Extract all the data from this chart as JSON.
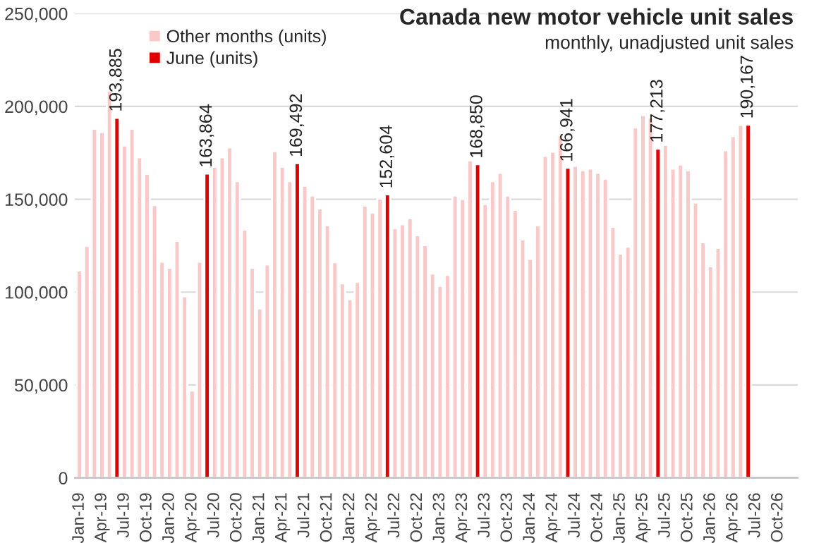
{
  "chart_data": {
    "type": "bar",
    "title": "Canada new motor vehicle unit sales",
    "subtitle": "monthly, unadjusted unit sales",
    "categories": [
      "Jan-19",
      null,
      null,
      "Apr-19",
      null,
      null,
      "Jul-19",
      null,
      null,
      "Oct-19",
      null,
      null,
      "Jan-20",
      null,
      null,
      "Apr-20",
      null,
      null,
      "Jul-20",
      null,
      null,
      "Oct-20",
      null,
      null,
      "Jan-21",
      null,
      null,
      "Apr-21",
      null,
      null,
      "Jul-21",
      null,
      null,
      "Oct-21",
      null,
      null,
      "Jan-22",
      null,
      null,
      "Apr-22",
      null,
      null,
      "Jul-22",
      null,
      null,
      "Oct-22",
      null,
      null,
      "Jan-23",
      null,
      null,
      "Apr-23",
      null,
      null,
      "Jul-23",
      null,
      null,
      "Oct-23",
      null,
      null,
      "Jan-24",
      null,
      null,
      "Apr-24",
      null,
      null,
      "Jul-24",
      null,
      null,
      "Oct-24",
      null,
      null,
      "Jan-25",
      null,
      null,
      "Apr-25",
      null,
      null,
      "Jul-25",
      null,
      null,
      "Oct-25",
      null,
      null,
      "Jan-26",
      null,
      null,
      "Apr-26",
      null,
      null,
      "Jul-26",
      null,
      null,
      "Oct-26",
      null,
      null
    ],
    "series": [
      {
        "name": "Other months (units)",
        "color": "#f9c9c9",
        "values": [
          111600,
          124800,
          188000,
          186300,
          208400,
          null,
          178900,
          188000,
          172600,
          163700,
          146900,
          116400,
          113100,
          127600,
          97800,
          47000,
          116400,
          null,
          167500,
          172600,
          177900,
          159800,
          133700,
          113100,
          91200,
          114900,
          175900,
          167500,
          159800,
          null,
          157300,
          152000,
          145100,
          136000,
          116100,
          104700,
          96300,
          105500,
          146600,
          142800,
          150400,
          null,
          134400,
          136500,
          139800,
          130600,
          125300,
          110000,
          103400,
          109300,
          152000,
          150200,
          171000,
          null,
          147400,
          159800,
          164200,
          152000,
          144300,
          128300,
          117900,
          136000,
          173300,
          175600,
          184500,
          null,
          168000,
          165700,
          166500,
          164200,
          161100,
          135200,
          120700,
          124500,
          188600,
          195400,
          193900,
          null,
          179200,
          166500,
          168700,
          165700,
          148200,
          126800,
          113900,
          123800,
          176400,
          184000,
          190100,
          null,
          null,
          null,
          null,
          null,
          null,
          null
        ]
      },
      {
        "name": "June (units)",
        "color": "#e00000",
        "values": [
          null,
          null,
          null,
          null,
          null,
          193885,
          null,
          null,
          null,
          null,
          null,
          null,
          null,
          null,
          null,
          null,
          null,
          163864,
          null,
          null,
          null,
          null,
          null,
          null,
          null,
          null,
          null,
          null,
          null,
          169492,
          null,
          null,
          null,
          null,
          null,
          null,
          null,
          null,
          null,
          null,
          null,
          152604,
          null,
          null,
          null,
          null,
          null,
          null,
          null,
          null,
          null,
          null,
          null,
          168850,
          null,
          null,
          null,
          null,
          null,
          null,
          null,
          null,
          null,
          null,
          null,
          166941,
          null,
          null,
          null,
          null,
          null,
          null,
          null,
          null,
          null,
          null,
          null,
          177213,
          null,
          null,
          null,
          null,
          null,
          null,
          null,
          null,
          null,
          null,
          null,
          190167,
          null,
          null,
          null,
          null,
          null,
          null
        ],
        "value_labels": [
          null,
          null,
          null,
          null,
          null,
          "193,885",
          null,
          null,
          null,
          null,
          null,
          null,
          null,
          null,
          null,
          null,
          null,
          "163,864",
          null,
          null,
          null,
          null,
          null,
          null,
          null,
          null,
          null,
          null,
          null,
          "169,492",
          null,
          null,
          null,
          null,
          null,
          null,
          null,
          null,
          null,
          null,
          null,
          "152,604",
          null,
          null,
          null,
          null,
          null,
          null,
          null,
          null,
          null,
          null,
          null,
          "168,850",
          null,
          null,
          null,
          null,
          null,
          null,
          null,
          null,
          null,
          null,
          null,
          "166,941",
          null,
          null,
          null,
          null,
          null,
          null,
          null,
          null,
          null,
          null,
          null,
          "177,213",
          null,
          null,
          null,
          null,
          null,
          null,
          null,
          null,
          null,
          null,
          null,
          "190,167",
          null,
          null,
          null,
          null,
          null,
          null
        ]
      }
    ],
    "ylim": [
      0,
      250000
    ],
    "yticks": [
      0,
      {
        "value": 50000,
        "label": "50,000"
      },
      {
        "value": 100000,
        "label": "100,000"
      },
      {
        "value": 150000,
        "label": "150,000"
      },
      {
        "value": 200000,
        "label": "200,000"
      },
      {
        "value": 250000,
        "label": "250,000"
      }
    ],
    "grid": "y",
    "legend": "top"
  }
}
